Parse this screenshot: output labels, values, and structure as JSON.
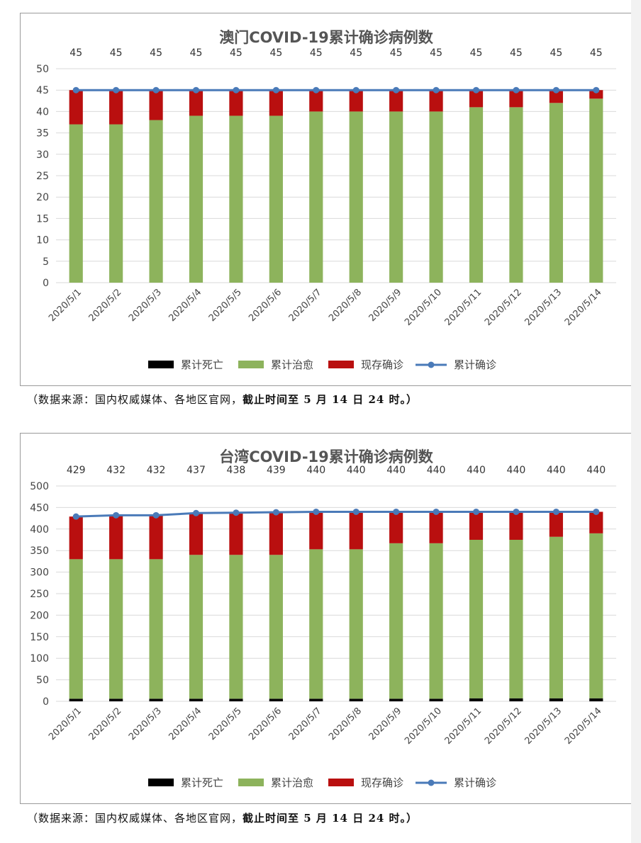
{
  "chart_data": [
    {
      "type": "bar",
      "stacked": true,
      "title": "澳门COVID-19累计确诊病例数",
      "categories": [
        "2020/5/1",
        "2020/5/2",
        "2020/5/3",
        "2020/5/4",
        "2020/5/5",
        "2020/5/6",
        "2020/5/7",
        "2020/5/8",
        "2020/5/9",
        "2020/5/10",
        "2020/5/11",
        "2020/5/12",
        "2020/5/13",
        "2020/5/14"
      ],
      "series": [
        {
          "name": "累计死亡",
          "kind": "bar",
          "color": "#000000",
          "values": [
            0,
            0,
            0,
            0,
            0,
            0,
            0,
            0,
            0,
            0,
            0,
            0,
            0,
            0
          ]
        },
        {
          "name": "累计治愈",
          "kind": "bar",
          "color": "#8db35c",
          "values": [
            37,
            37,
            38,
            39,
            39,
            39,
            40,
            40,
            40,
            40,
            41,
            41,
            42,
            43
          ]
        },
        {
          "name": "现存确诊",
          "kind": "bar",
          "color": "#b90f0f",
          "values": [
            8,
            8,
            7,
            6,
            6,
            6,
            5,
            5,
            5,
            5,
            4,
            4,
            3,
            2
          ]
        },
        {
          "name": "累计确诊",
          "kind": "line",
          "color": "#4a7ab8",
          "values": [
            45,
            45,
            45,
            45,
            45,
            45,
            45,
            45,
            45,
            45,
            45,
            45,
            45,
            45
          ]
        }
      ],
      "data_labels": [
        "45",
        "45",
        "45",
        "45",
        "45",
        "45",
        "45",
        "45",
        "45",
        "45",
        "45",
        "45",
        "45",
        "45"
      ],
      "yticks": [
        "0",
        "5",
        "10",
        "15",
        "20",
        "25",
        "30",
        "35",
        "40",
        "45",
        "50"
      ],
      "ylim": [
        0,
        50
      ],
      "grid": true,
      "legend": "bottom"
    },
    {
      "type": "bar",
      "stacked": true,
      "title": "台湾COVID-19累计确诊病例数",
      "categories": [
        "2020/5/1",
        "2020/5/2",
        "2020/5/3",
        "2020/5/4",
        "2020/5/5",
        "2020/5/6",
        "2020/5/7",
        "2020/5/8",
        "2020/5/9",
        "2020/5/10",
        "2020/5/11",
        "2020/5/12",
        "2020/5/13",
        "2020/5/14"
      ],
      "series": [
        {
          "name": "累计死亡",
          "kind": "bar",
          "color": "#000000",
          "values": [
            6,
            6,
            6,
            6,
            6,
            6,
            6,
            6,
            6,
            6,
            7,
            7,
            7,
            7
          ]
        },
        {
          "name": "累计治愈",
          "kind": "bar",
          "color": "#8db35c",
          "values": [
            324,
            324,
            324,
            334,
            334,
            334,
            347,
            347,
            361,
            361,
            368,
            368,
            375,
            383
          ]
        },
        {
          "name": "现存确诊",
          "kind": "bar",
          "color": "#b90f0f",
          "values": [
            99,
            102,
            102,
            97,
            98,
            99,
            87,
            87,
            73,
            73,
            65,
            65,
            58,
            50
          ]
        },
        {
          "name": "累计确诊",
          "kind": "line",
          "color": "#4a7ab8",
          "values": [
            429,
            432,
            432,
            437,
            438,
            439,
            440,
            440,
            440,
            440,
            440,
            440,
            440,
            440
          ]
        }
      ],
      "data_labels": [
        "429",
        "432",
        "432",
        "437",
        "438",
        "439",
        "440",
        "440",
        "440",
        "440",
        "440",
        "440",
        "440",
        "440"
      ],
      "yticks": [
        "0",
        "50",
        "100",
        "150",
        "200",
        "250",
        "300",
        "350",
        "400",
        "450",
        "500"
      ],
      "ylim": [
        0,
        500
      ],
      "grid": true,
      "legend": "bottom"
    }
  ],
  "source_note": {
    "plain": "（数据来源：国内权威媒体、各地区官网，",
    "bold": "截止时间至 5 月 14 日 24 时。）"
  }
}
